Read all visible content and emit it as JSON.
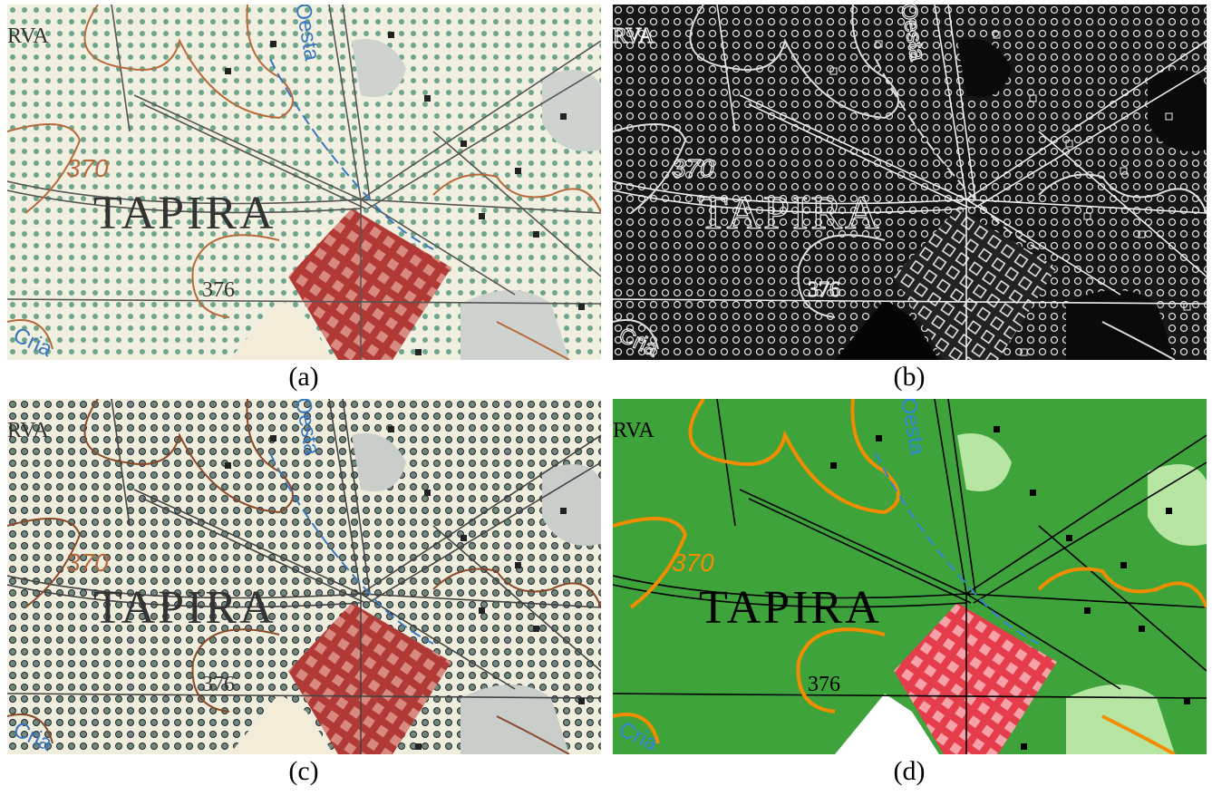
{
  "panels": [
    {
      "caption": "(a)",
      "labels": {
        "rva": "RVA",
        "elev1": "370",
        "town": "TAPIRA",
        "elev2": "376",
        "river": "Oesta",
        "creek": "Cria"
      }
    },
    {
      "caption": "(b)",
      "labels": {
        "rva": "RVA",
        "elev1": "370",
        "town": "TAPIRA",
        "elev2": "376",
        "river": "Oesta",
        "creek": "Cria"
      }
    },
    {
      "caption": "(c)",
      "labels": {
        "rva": "RVA",
        "elev1": "370",
        "town": "TAPIRA",
        "elev2": "376",
        "river": "Oesta",
        "creek": "Cria"
      }
    },
    {
      "caption": "(d)",
      "labels": {
        "rva": "RVA",
        "elev1": "370",
        "town": "TAPIRA",
        "elev2": "376",
        "river": "Oesta",
        "creek": "Cria"
      }
    }
  ]
}
